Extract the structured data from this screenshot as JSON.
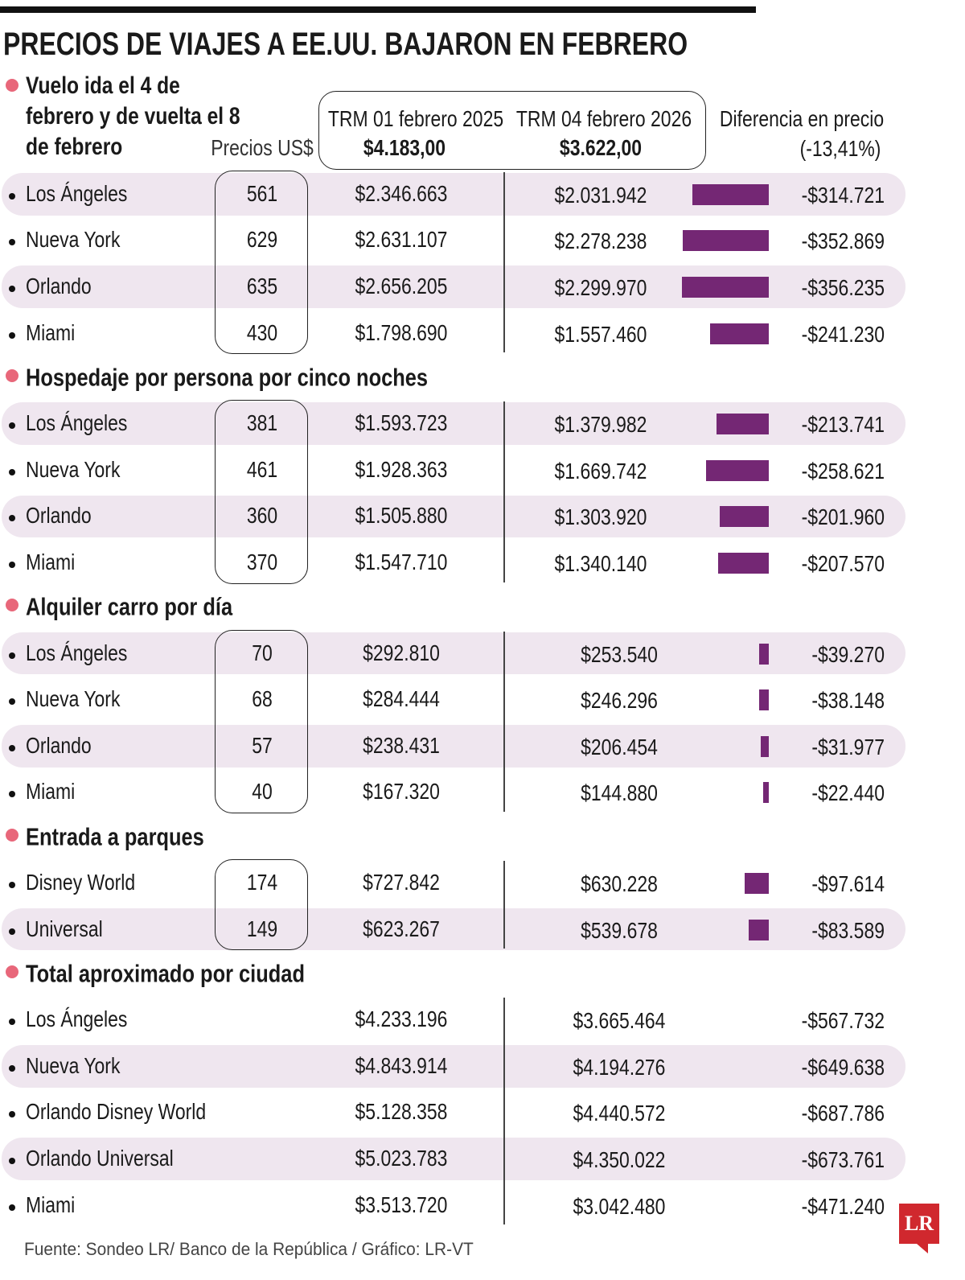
{
  "title": "PRECIOS DE VIAJES A EE.UU. BAJARON EN FEBRERO",
  "header": {
    "col_usd": "Precios US$",
    "col_trm1": "TRM 01 febrero 2025",
    "trm1_value": "$4.183,00",
    "col_trm2": "TRM 04 febrero 2026",
    "trm2_value": "$3.622,00",
    "col_diff": "Diferencia en precio",
    "diff_pct": "(-13,41%)"
  },
  "sections": [
    {
      "title": "Vuelo ida el 4 de febrero y de vuelta el 8 de febrero",
      "rows": [
        {
          "city": "Los Ángeles",
          "usd": 561,
          "price_2025": "$2.346.663",
          "price_2026": "$2.031.942",
          "diff": {
            "value": -314721,
            "label": "-$314.721"
          }
        },
        {
          "city": "Nueva York",
          "usd": 629,
          "price_2025": "$2.631.107",
          "price_2026": "$2.278.238",
          "diff": {
            "value": -352869,
            "label": "-$352.869"
          }
        },
        {
          "city": "Orlando",
          "usd": 635,
          "price_2025": "$2.656.205",
          "price_2026": "$2.299.970",
          "diff": {
            "value": -356235,
            "label": "-$356.235"
          }
        },
        {
          "city": "Miami",
          "usd": 430,
          "price_2025": "$1.798.690",
          "price_2026": "$1.557.460",
          "diff": {
            "value": -241230,
            "label": "-$241.230"
          }
        }
      ]
    },
    {
      "title": "Hospedaje por persona por cinco noches",
      "rows": [
        {
          "city": "Los Ángeles",
          "usd": 381,
          "price_2025": "$1.593.723",
          "price_2026": "$1.379.982",
          "diff": {
            "value": -213741,
            "label": "-$213.741"
          }
        },
        {
          "city": "Nueva York",
          "usd": 461,
          "price_2025": "$1.928.363",
          "price_2026": "$1.669.742",
          "diff": {
            "value": -258621,
            "label": "-$258.621"
          }
        },
        {
          "city": "Orlando",
          "usd": 360,
          "price_2025": "$1.505.880",
          "price_2026": "$1.303.920",
          "diff": {
            "value": -201960,
            "label": "-$201.960"
          }
        },
        {
          "city": "Miami",
          "usd": 370,
          "price_2025": "$1.547.710",
          "price_2026": "$1.340.140",
          "diff": {
            "value": -207570,
            "label": "-$207.570"
          }
        }
      ]
    },
    {
      "title": "Alquiler carro por día",
      "rows": [
        {
          "city": "Los Ángeles",
          "usd": 70,
          "price_2025": "$292.810",
          "price_2026": "$253.540",
          "diff": {
            "value": -39270,
            "label": "-$39.270"
          }
        },
        {
          "city": "Nueva York",
          "usd": 68,
          "price_2025": "$284.444",
          "price_2026": "$246.296",
          "diff": {
            "value": -38148,
            "label": "-$38.148"
          }
        },
        {
          "city": "Orlando",
          "usd": 57,
          "price_2025": "$238.431",
          "price_2026": "$206.454",
          "diff": {
            "value": -31977,
            "label": "-$31.977"
          }
        },
        {
          "city": "Miami",
          "usd": 40,
          "price_2025": "$167.320",
          "price_2026": "$144.880",
          "diff": {
            "value": -22440,
            "label": "-$22.440"
          }
        }
      ]
    },
    {
      "title": "Entrada a parques",
      "rows": [
        {
          "city": "Disney World",
          "usd": 174,
          "price_2025": "$727.842",
          "price_2026": "$630.228",
          "diff": {
            "value": -97614,
            "label": "-$97.614"
          }
        },
        {
          "city": "Universal",
          "usd": 149,
          "price_2025": "$623.267",
          "price_2026": "$539.678",
          "diff": {
            "value": -83589,
            "label": "-$83.589"
          }
        }
      ]
    },
    {
      "title": "Total aproximado por ciudad",
      "rows": [
        {
          "city": "Los Ángeles",
          "price_2025": "$4.233.196",
          "price_2026": "$3.665.464",
          "diff": {
            "label": "-$567.732"
          }
        },
        {
          "city": "Nueva York",
          "price_2025": "$4.843.914",
          "price_2026": "$4.194.276",
          "diff": {
            "label": "-$649.638"
          }
        },
        {
          "city": "Orlando Disney World",
          "price_2025": "$5.128.358",
          "price_2026": "$4.440.572",
          "diff": {
            "label": "-$687.786"
          }
        },
        {
          "city": "Orlando Universal",
          "price_2025": "$5.023.783",
          "price_2026": "$4.350.022",
          "diff": {
            "label": "-$673.761"
          }
        },
        {
          "city": "Miami",
          "price_2025": "$3.513.720",
          "price_2026": "$3.042.480",
          "diff": {
            "label": "-$471.240"
          }
        }
      ]
    }
  ],
  "source": "Fuente: Sondeo LR/ Banco de la República / Gráfico: LR-VT",
  "logo": "LR"
}
